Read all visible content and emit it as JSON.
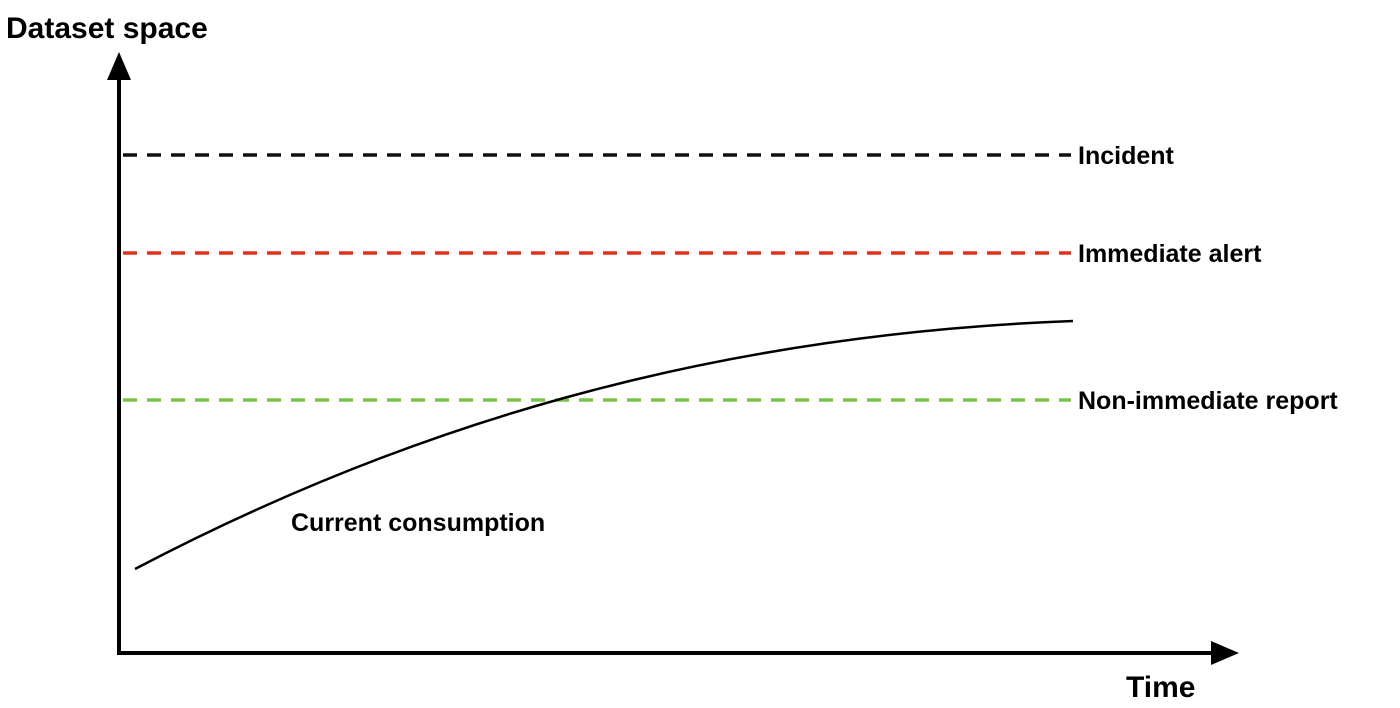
{
  "axes": {
    "y_label": "Dataset space",
    "x_label": "Time"
  },
  "thresholds": [
    {
      "id": "incident",
      "label": "Incident",
      "color": "#111111"
    },
    {
      "id": "immediate-alert",
      "label": "Immediate alert",
      "color": "#e0301e"
    },
    {
      "id": "non-immediate-report",
      "label": "Non-immediate report",
      "color": "#79c34a"
    }
  ],
  "curve": {
    "label": "Current consumption",
    "color": "#000000"
  },
  "colors": {
    "axis": "#000000",
    "background": "#ffffff"
  }
}
